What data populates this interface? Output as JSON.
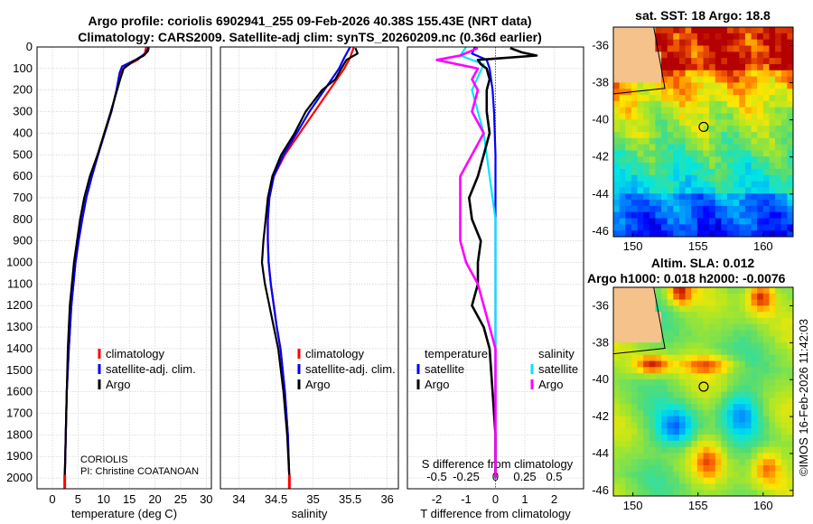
{
  "title": {
    "line1": "Argo profile: coriolis 6902941_255 09-Feb-2026 40.38S 155.43E (NRT data)",
    "line2": "Climatology: CARS2009. Satellite-adj clim: synTS_20260209.nc (0.36d earlier)"
  },
  "colors": {
    "climatology": "#ff0000",
    "satellite": "#0000ff",
    "argo": "#000000",
    "sat_salinity": "#00e5ff",
    "argo_salinity": "#ff00ff",
    "land": "#f5c28c"
  },
  "depth_axis": {
    "ticks": [
      0,
      100,
      200,
      300,
      400,
      500,
      600,
      700,
      800,
      900,
      1000,
      1100,
      1200,
      1300,
      1400,
      1500,
      1600,
      1700,
      1800,
      1900,
      2000
    ],
    "range": [
      0,
      2050
    ]
  },
  "chart_data": [
    {
      "type": "line",
      "name": "temperature-panel",
      "xlabel": "temperature (deg C)",
      "xlim": [
        -3,
        31
      ],
      "xticks": [
        0,
        5,
        10,
        15,
        20,
        25,
        30
      ],
      "legend": [
        "climatology",
        "satellite-adj. clim.",
        "Argo"
      ],
      "annotation": [
        "CORIOLIS",
        "PI: Christine COATANOAN"
      ],
      "series": [
        {
          "name": "climatology",
          "depth": [
            0,
            30,
            60,
            90,
            120,
            200,
            300,
            400,
            500,
            600,
            700,
            800,
            900,
            1000,
            1200,
            1400,
            1600,
            1800,
            2000
          ],
          "values": [
            18.3,
            18,
            16.6,
            14.2,
            13.3,
            12.5,
            11.5,
            10.2,
            8.9,
            7.7,
            6.6,
            5.8,
            5.1,
            4.5,
            3.7,
            3.2,
            2.8,
            2.6,
            2.4
          ]
        },
        {
          "name": "satellite-adj. clim.",
          "depth": [
            0,
            30,
            60,
            90,
            120,
            200,
            300,
            400,
            500,
            600,
            700,
            800,
            900,
            1000,
            1200,
            1400,
            1600,
            1800,
            2000
          ],
          "values": [
            18.8,
            18.2,
            16.2,
            13.6,
            13.1,
            12.5,
            11.5,
            10.2,
            8.9,
            7.7,
            6.6,
            5.8,
            5.1,
            4.5,
            3.7,
            3.2,
            2.8,
            2.6,
            2.4
          ]
        },
        {
          "name": "Argo",
          "depth": [
            5,
            20,
            40,
            70,
            100,
            150,
            200,
            300,
            400,
            500,
            600,
            700,
            800,
            900,
            1000,
            1100,
            1200,
            1300,
            1400,
            1600,
            1800,
            2000
          ],
          "values": [
            18.8,
            18.6,
            17.8,
            15.5,
            13.9,
            13.2,
            12.6,
            11.4,
            10.1,
            8.8,
            7.3,
            6.2,
            5.4,
            4.8,
            4.2,
            3.8,
            3.4,
            3.2,
            3.0,
            2.8,
            2.6,
            2.4
          ]
        }
      ]
    },
    {
      "type": "line",
      "name": "salinity-panel",
      "xlabel": "salinity",
      "xlim": [
        33.75,
        36.15
      ],
      "xticks": [
        34,
        34.5,
        35,
        35.5,
        36
      ],
      "legend": [
        "climatology",
        "satellite-adj. clim.",
        "Argo"
      ],
      "series": [
        {
          "name": "climatology",
          "depth": [
            0,
            50,
            100,
            200,
            300,
            400,
            500,
            600,
            700,
            800,
            900,
            1000,
            1100,
            1200,
            1300,
            1400,
            1600,
            1800,
            2000
          ],
          "values": [
            35.55,
            35.5,
            35.42,
            35.22,
            35.02,
            34.82,
            34.62,
            34.47,
            34.41,
            34.39,
            34.39,
            34.4,
            34.43,
            34.47,
            34.51,
            34.56,
            34.62,
            34.66,
            34.68
          ]
        },
        {
          "name": "satellite-adj. clim.",
          "depth": [
            0,
            50,
            100,
            200,
            300,
            400,
            500,
            600,
            700,
            800,
            900,
            1000,
            1100,
            1200,
            1300,
            1400,
            1600,
            1800,
            2000
          ],
          "values": [
            35.5,
            35.42,
            35.35,
            35.15,
            34.95,
            34.78,
            34.6,
            34.47,
            34.41,
            34.39,
            34.39,
            34.4,
            34.43,
            34.47,
            34.51,
            34.56,
            34.62,
            34.66,
            34.68
          ]
        },
        {
          "name": "Argo",
          "depth": [
            5,
            30,
            60,
            100,
            150,
            200,
            300,
            400,
            500,
            600,
            700,
            800,
            900,
            1000,
            1050,
            1100,
            1200,
            1300,
            1400,
            1600,
            1800,
            2000
          ],
          "values": [
            35.57,
            35.6,
            35.45,
            35.38,
            35.3,
            35.12,
            34.9,
            34.75,
            34.57,
            34.45,
            34.39,
            34.36,
            34.33,
            34.31,
            34.33,
            34.35,
            34.41,
            34.47,
            34.53,
            34.6,
            34.65,
            34.68
          ]
        }
      ]
    },
    {
      "type": "line",
      "name": "difference-panel",
      "xlabel": "T difference from climatology",
      "xlabel_top": "S difference from climatology",
      "xlim": [
        -3,
        3
      ],
      "xticks": [
        -2,
        -1,
        0,
        1,
        2
      ],
      "xticks_top": [
        "-0.5",
        "-0.25",
        "0",
        "0.25",
        "0.5"
      ],
      "legend_temperature": {
        "header": "temperature",
        "items": [
          "satellite",
          "Argo"
        ]
      },
      "legend_salinity": {
        "header": "salinity",
        "items": [
          "satellite",
          "Argo"
        ]
      },
      "series": [
        {
          "name": "T satellite",
          "depth": [
            0,
            30,
            60,
            100,
            200,
            300,
            500,
            700,
            1000,
            1400,
            2000
          ],
          "values": [
            -0.7,
            -0.8,
            -0.3,
            -0.2,
            -0.1,
            -0.05,
            0,
            0,
            0,
            0,
            0
          ]
        },
        {
          "name": "T Argo",
          "depth": [
            5,
            25,
            40,
            60,
            80,
            100,
            150,
            200,
            300,
            400,
            500,
            600,
            700,
            800,
            900,
            1000,
            1100,
            1200,
            1300,
            1400,
            1600,
            1800,
            2000
          ],
          "values": [
            0.5,
            0.9,
            1.4,
            -0.6,
            -0.5,
            -0.3,
            -0.2,
            -0.3,
            -0.3,
            -0.2,
            -0.4,
            -0.6,
            -0.9,
            -0.8,
            -0.5,
            -0.6,
            -0.6,
            -0.8,
            -0.4,
            -0.2,
            -0.1,
            0,
            0
          ]
        },
        {
          "name": "S satellite",
          "depth": [
            0,
            40,
            80,
            200,
            300,
            400,
            600,
            800,
            1000,
            1400,
            2000
          ],
          "values": [
            -0.25,
            -0.3,
            -0.1,
            -0.2,
            -0.15,
            -0.1,
            -0.05,
            0,
            0,
            0,
            0
          ]
        },
        {
          "name": "S Argo",
          "depth": [
            5,
            40,
            60,
            100,
            150,
            200,
            300,
            400,
            500,
            600,
            700,
            800,
            900,
            1000,
            1100,
            1200,
            1400,
            1600,
            2000
          ],
          "values": [
            -0.15,
            -0.3,
            -0.5,
            -0.15,
            -0.2,
            -0.15,
            -0.2,
            -0.1,
            -0.2,
            -0.3,
            -0.3,
            -0.3,
            -0.3,
            -0.25,
            -0.15,
            -0.1,
            0,
            0,
            0
          ]
        }
      ]
    },
    {
      "type": "heatmap",
      "name": "sst-map",
      "title": "sat. SST: 18 Argo: 18.8",
      "xlim": [
        148.5,
        162.3
      ],
      "ylim": [
        -46.3,
        -35
      ],
      "xticks": [
        150,
        155,
        160
      ],
      "yticks": [
        -36,
        -38,
        -40,
        -42,
        -44,
        -46
      ],
      "profile_location": [
        155.43,
        -40.38
      ]
    },
    {
      "type": "heatmap",
      "name": "sla-map",
      "title_line1": "Altim. SLA: 0.012",
      "title_line2": "Argo h1000: 0.018 h2000: -0.0076",
      "xlim": [
        148.5,
        162.3
      ],
      "ylim": [
        -46.3,
        -35
      ],
      "xticks": [
        150,
        155,
        160
      ],
      "yticks": [
        -36,
        -38,
        -40,
        -42,
        -44,
        -46
      ],
      "profile_location": [
        155.43,
        -40.38
      ]
    }
  ],
  "watermark": "©IMOS 16-Feb-2026 11:42:03"
}
